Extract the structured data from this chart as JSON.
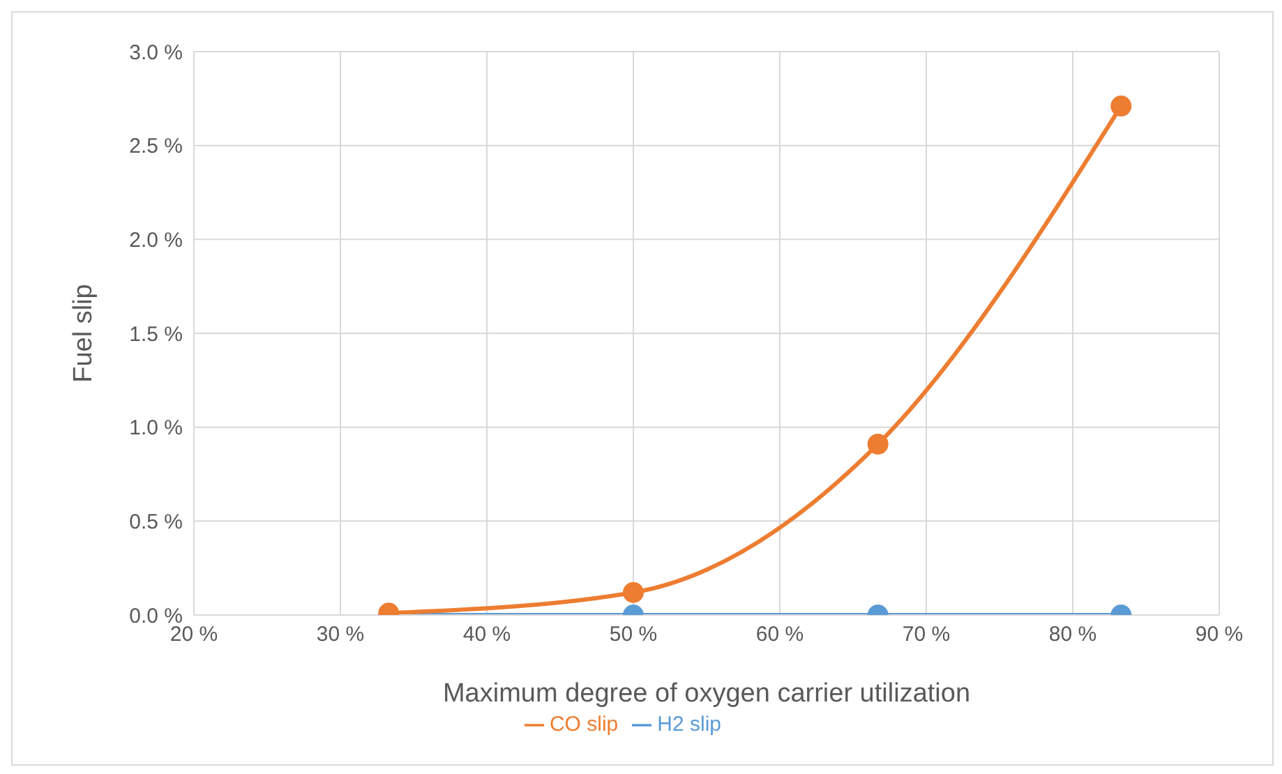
{
  "chart_data": {
    "type": "line",
    "xlabel": "Maximum degree of oxygen carrier utilization",
    "ylabel": "Fuel slip",
    "x": [
      33.3,
      50,
      66.7,
      83.3
    ],
    "series": [
      {
        "name": "H2 slip",
        "color": "#5b9bd5",
        "values": [
          0,
          0,
          0,
          0
        ]
      },
      {
        "name": "CO slip",
        "color": "#ed7d31",
        "values": [
          0.01,
          0.12,
          0.91,
          2.71
        ]
      }
    ],
    "xlim": [
      20,
      90
    ],
    "xticks": [
      {
        "value": 20,
        "label": "20 %"
      },
      {
        "value": 30,
        "label": "30 %"
      },
      {
        "value": 40,
        "label": "40 %"
      },
      {
        "value": 50,
        "label": "50 %"
      },
      {
        "value": 60,
        "label": "60 %"
      },
      {
        "value": 70,
        "label": "70 %"
      },
      {
        "value": 80,
        "label": "80 %"
      },
      {
        "value": 90,
        "label": "90 %"
      }
    ],
    "ylim": [
      0,
      3
    ],
    "yticks": [
      {
        "value": 0,
        "label": "0.0 %"
      },
      {
        "value": 0.5,
        "label": "0.5 %"
      },
      {
        "value": 1,
        "label": "1.0 %"
      },
      {
        "value": 1.5,
        "label": "1.5 %"
      },
      {
        "value": 2,
        "label": "2.0 %"
      },
      {
        "value": 2.5,
        "label": "2.5 %"
      },
      {
        "value": 3,
        "label": "3.0 %"
      }
    ],
    "grid": true,
    "legend": "bottom",
    "marker": "circle",
    "line_style": "solid"
  }
}
